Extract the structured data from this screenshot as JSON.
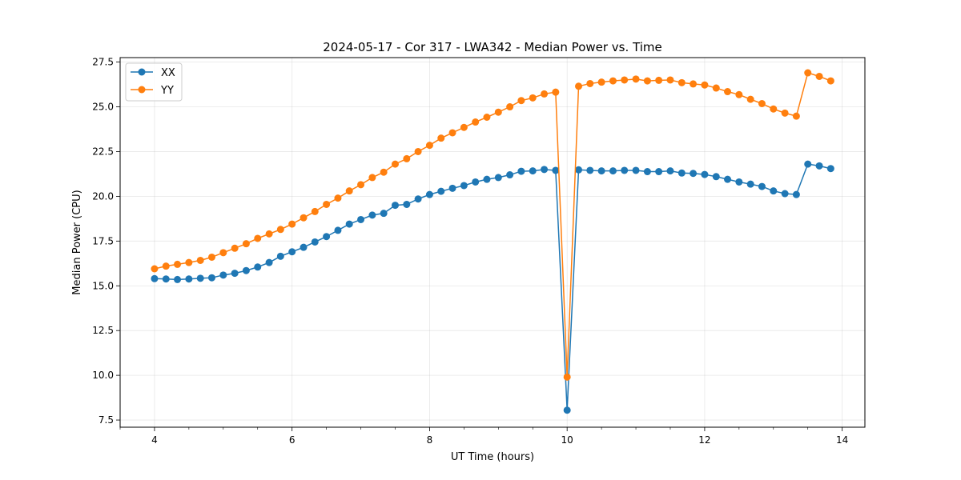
{
  "chart_data": {
    "type": "line",
    "title": "2024-05-17 - Cor 317 - LWA342 - Median Power vs. Time",
    "xlabel": "UT Time (hours)",
    "ylabel": "Median Power (CPU)",
    "xlim": [
      3.5,
      14.33
    ],
    "ylim": [
      7.1,
      27.75
    ],
    "xticks": [
      4,
      6,
      8,
      10,
      12,
      14
    ],
    "xtick_labels": [
      "4",
      "6",
      "8",
      "10",
      "12",
      "14"
    ],
    "yticks": [
      7.5,
      10.0,
      12.5,
      15.0,
      17.5,
      20.0,
      22.5,
      25.0,
      27.5
    ],
    "ytick_labels": [
      "7.5",
      "10.0",
      "12.5",
      "15.0",
      "17.5",
      "20.0",
      "22.5",
      "25.0",
      "27.5"
    ],
    "grid": true,
    "legend_position": "top-left",
    "x": [
      4.0,
      4.167,
      4.333,
      4.5,
      4.667,
      4.833,
      5.0,
      5.167,
      5.333,
      5.5,
      5.667,
      5.833,
      6.0,
      6.167,
      6.333,
      6.5,
      6.667,
      6.833,
      7.0,
      7.167,
      7.333,
      7.5,
      7.667,
      7.833,
      8.0,
      8.167,
      8.333,
      8.5,
      8.667,
      8.833,
      9.0,
      9.167,
      9.333,
      9.5,
      9.667,
      9.833,
      10.0,
      10.167,
      10.333,
      10.5,
      10.667,
      10.833,
      11.0,
      11.167,
      11.333,
      11.5,
      11.667,
      11.833,
      12.0,
      12.167,
      12.333,
      12.5,
      12.667,
      12.833,
      13.0,
      13.167,
      13.333,
      13.5,
      13.667,
      13.833
    ],
    "series": [
      {
        "name": "XX",
        "color": "#1f77b4",
        "values": [
          15.4,
          15.38,
          15.35,
          15.38,
          15.42,
          15.45,
          15.6,
          15.7,
          15.85,
          16.05,
          16.3,
          16.65,
          16.9,
          17.15,
          17.45,
          17.75,
          18.1,
          18.45,
          18.7,
          18.95,
          19.05,
          19.5,
          19.55,
          19.85,
          20.1,
          20.28,
          20.45,
          20.6,
          20.8,
          20.95,
          21.05,
          21.2,
          21.4,
          21.42,
          21.5,
          21.45,
          8.05,
          21.48,
          21.45,
          21.42,
          21.42,
          21.45,
          21.45,
          21.38,
          21.38,
          21.42,
          21.3,
          21.28,
          21.22,
          21.1,
          20.95,
          20.8,
          20.68,
          20.55,
          20.3,
          20.15,
          20.1,
          21.8,
          21.7,
          21.55
        ]
      },
      {
        "name": "YY",
        "color": "#ff7f0e",
        "values": [
          15.95,
          16.1,
          16.2,
          16.3,
          16.42,
          16.6,
          16.85,
          17.1,
          17.35,
          17.65,
          17.9,
          18.15,
          18.45,
          18.8,
          19.15,
          19.55,
          19.9,
          20.3,
          20.65,
          21.05,
          21.35,
          21.8,
          22.1,
          22.5,
          22.85,
          23.25,
          23.55,
          23.85,
          24.15,
          24.42,
          24.7,
          25.0,
          25.35,
          25.5,
          25.72,
          25.82,
          9.9,
          26.15,
          26.3,
          26.38,
          26.45,
          26.5,
          26.55,
          26.45,
          26.48,
          26.5,
          26.35,
          26.28,
          26.22,
          26.05,
          25.85,
          25.68,
          25.42,
          25.18,
          24.88,
          24.65,
          24.48,
          26.9,
          26.7,
          26.45
        ]
      }
    ]
  }
}
